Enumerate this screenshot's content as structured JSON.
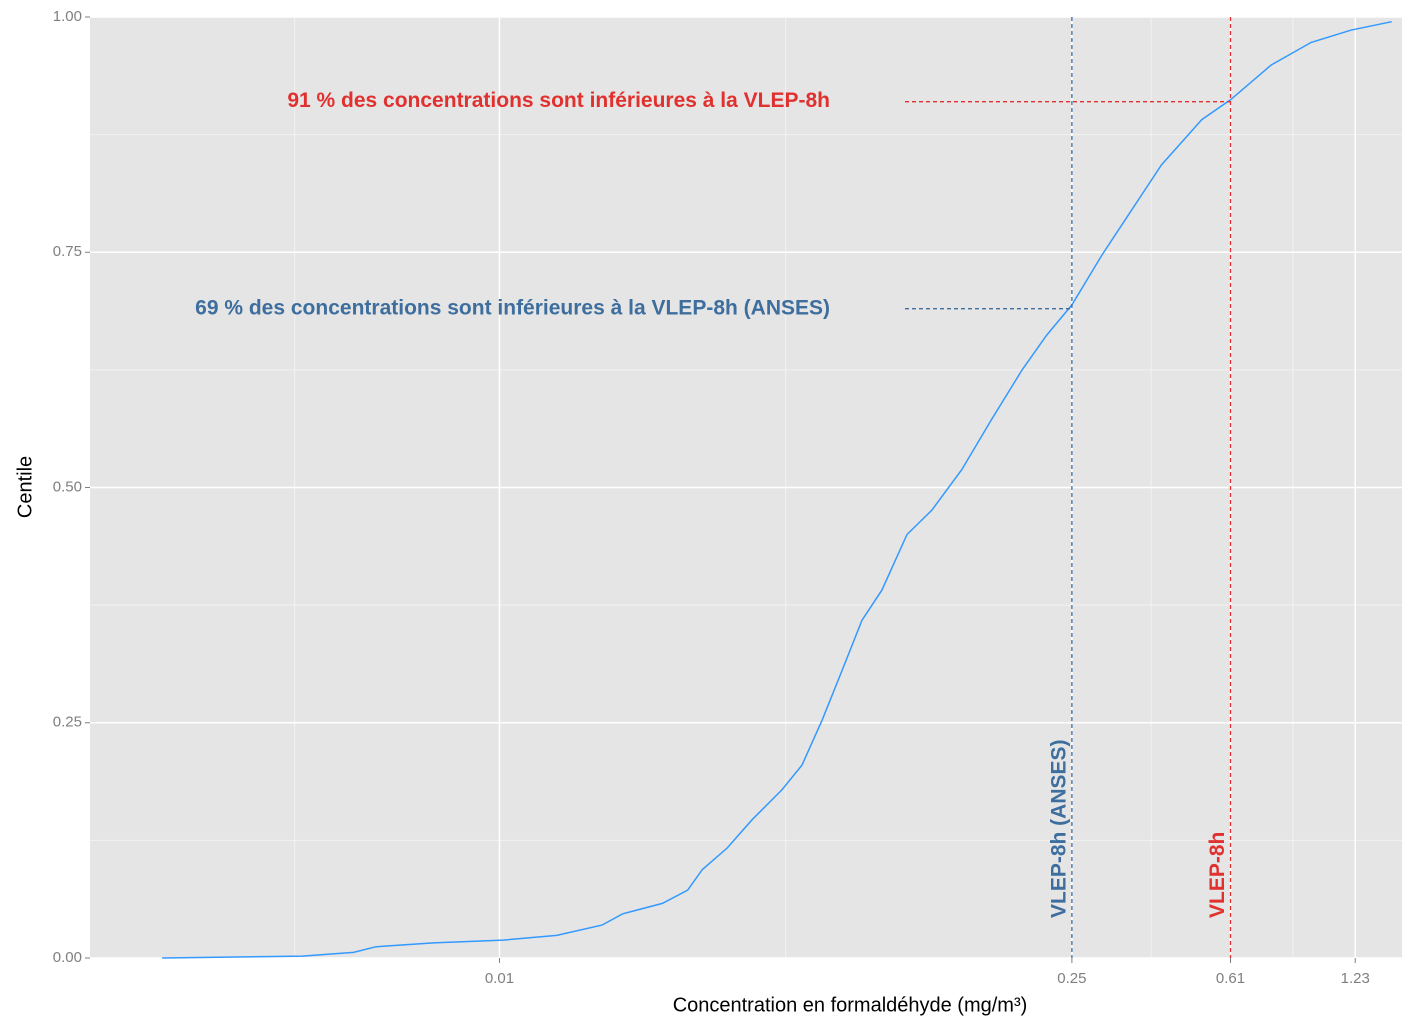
{
  "chart_data": {
    "type": "line",
    "xlabel": "Concentration en formaldéhyde (mg/m³)",
    "ylabel": "Centile",
    "xscale": "log",
    "xlim": [
      0.001,
      1.6
    ],
    "ylim": [
      0,
      1
    ],
    "xticks": [
      0.01,
      0.25,
      0.61,
      1.23
    ],
    "yticks": [
      {
        "value": 0,
        "label": "0.00"
      },
      {
        "value": 0.25,
        "label": "0.25"
      },
      {
        "value": 0.5,
        "label": "0.50"
      },
      {
        "value": 0.75,
        "label": "0.75"
      },
      {
        "value": 1,
        "label": "1.00"
      }
    ],
    "grid": true,
    "x": [
      0.0015,
      0.0033,
      0.0044,
      0.005,
      0.0069,
      0.0102,
      0.0138,
      0.0178,
      0.02,
      0.025,
      0.0288,
      0.0313,
      0.036,
      0.0414,
      0.049,
      0.0548,
      0.0614,
      0.0687,
      0.0768,
      0.0859,
      0.0989,
      0.1138,
      0.1346,
      0.159,
      0.189,
      0.217,
      0.25,
      0.296,
      0.35,
      0.414,
      0.519,
      0.61,
      0.767,
      0.96,
      1.2,
      1.51
    ],
    "series": [
      {
        "color": "#3399ff",
        "values": [
          0,
          0.002,
          0.006,
          0.012,
          0.016,
          0.019,
          0.024,
          0.035,
          0.047,
          0.058,
          0.072,
          0.094,
          0.117,
          0.147,
          0.179,
          0.205,
          0.253,
          0.306,
          0.359,
          0.391,
          0.45,
          0.476,
          0.519,
          0.572,
          0.625,
          0.662,
          0.694,
          0.747,
          0.795,
          0.843,
          0.891,
          0.912,
          0.949,
          0.973,
          0.986,
          0.995
        ]
      }
    ],
    "reference_lines": [
      {
        "name": "VLEP-8h (ANSES)",
        "x": 0.25,
        "y": 0.69,
        "color": "#3d6e9e",
        "label": "69 % des concentrations sont inférieures à la VLEP-8h (ANSES)"
      },
      {
        "name": "VLEP-8h",
        "x": 0.61,
        "y": 0.91,
        "color": "#e0312f",
        "label": "91 % des concentrations sont inférieures à la VLEP-8h"
      }
    ]
  }
}
